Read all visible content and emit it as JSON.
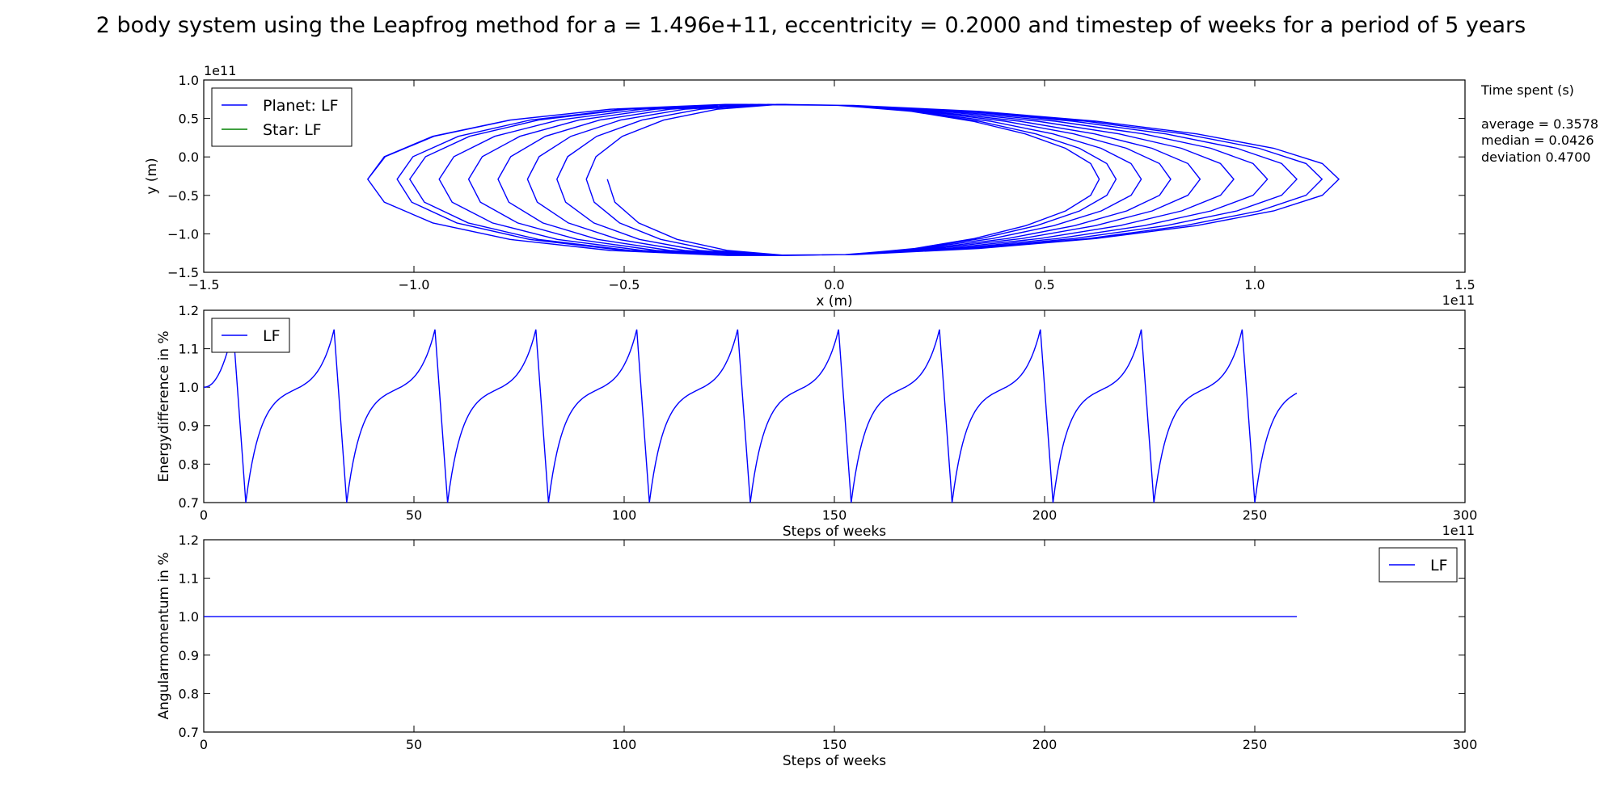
{
  "figure": {
    "title": "2 body system using the Leapfrog method for a = 1.496e+11, eccentricity = 0.2000 and timestep of weeks for a period of 5 years"
  },
  "stats_box": {
    "heading": "Time spent (s)",
    "lines": [
      "average = 0.3578",
      "median = 0.0426",
      "deviation 0.4700"
    ]
  },
  "colors": {
    "planet": "#0000ff",
    "star": "#008000",
    "axes": "#000000"
  },
  "chart_data": [
    {
      "type": "line",
      "name": "orbit",
      "xlabel": "x (m)",
      "ylabel": "y (m)",
      "x_offset_label": "1e11",
      "y_offset_label": "1e11",
      "xlim": [
        -1.5,
        1.5
      ],
      "ylim": [
        -1.5,
        1.0
      ],
      "xticks": [
        -1.5,
        -1.0,
        -0.5,
        0.0,
        0.5,
        1.0,
        1.5
      ],
      "xtick_labels": [
        "−1.5",
        "−1.0",
        "−0.5",
        "0.0",
        "0.5",
        "1.0",
        "1.5"
      ],
      "yticks": [
        -1.5,
        -1.0,
        -0.5,
        0.0,
        0.5,
        1.0
      ],
      "ytick_labels": [
        "−1.5",
        "−1.0",
        "−0.5",
        "0.0",
        "0.5",
        "1.0"
      ],
      "legend": {
        "placement": "upper-left",
        "entries": [
          "Planet: LF",
          "Star: LF"
        ]
      },
      "series": [
        {
          "name": "Planet: LF",
          "color": "#0000ff",
          "description": "precessing elliptical orbit; turning points drift from x≈-0.54 / 0.63 out to x≈-1.11 / 1.22 over 11 loops",
          "left_turning_points": [
            -0.54,
            -0.59,
            -0.66,
            -0.73,
            -0.8,
            -0.87,
            -0.94,
            -1.01,
            -1.04,
            -1.11
          ],
          "right_turning_points": [
            0.63,
            0.67,
            0.73,
            0.8,
            0.87,
            0.95,
            1.03,
            1.1,
            1.16,
            1.2,
            1.22
          ],
          "start": [
            -0.53,
            -0.25
          ],
          "end": [
            1.2,
            0.15
          ],
          "end_left": [
            -0.93,
            -0.9
          ],
          "top": 0.7,
          "bottom": -1.27
        },
        {
          "name": "Star: LF",
          "color": "#008000",
          "values": []
        }
      ]
    },
    {
      "type": "line",
      "name": "energy",
      "xlabel": "Steps of weeks",
      "ylabel": "Energydifference in %",
      "x_offset_label": "1e11",
      "xlim": [
        0,
        300
      ],
      "ylim": [
        0.7,
        1.2
      ],
      "xticks": [
        0,
        50,
        100,
        150,
        200,
        250,
        300
      ],
      "xtick_labels": [
        "0",
        "50",
        "100",
        "150",
        "200",
        "250",
        "300"
      ],
      "yticks": [
        0.7,
        0.8,
        0.9,
        1.0,
        1.1,
        1.2
      ],
      "ytick_labels": [
        "0.7",
        "0.8",
        "0.9",
        "1.0",
        "1.1",
        "1.2"
      ],
      "legend": {
        "placement": "upper-left",
        "entries": [
          "LF"
        ]
      },
      "series": [
        {
          "name": "LF",
          "color": "#0000ff",
          "x_range": [
            0,
            260
          ],
          "period_weeks": 24,
          "peak_value": 1.15,
          "trough_value": 0.7,
          "peaks_at": [
            7,
            31,
            55,
            79,
            103,
            127,
            151,
            175,
            199,
            223,
            247
          ],
          "troughs_at": [
            10,
            34,
            58,
            82,
            106,
            130,
            154,
            178,
            202,
            226,
            250
          ],
          "start_value": 1.0,
          "end_value": 0.97
        }
      ]
    },
    {
      "type": "line",
      "name": "angular-momentum",
      "xlabel": "Steps of weeks",
      "ylabel": "Angularmomentum in  %",
      "xlim": [
        0,
        300
      ],
      "ylim": [
        0.7,
        1.2
      ],
      "xticks": [
        0,
        50,
        100,
        150,
        200,
        250,
        300
      ],
      "xtick_labels": [
        "0",
        "50",
        "100",
        "150",
        "200",
        "250",
        "300"
      ],
      "yticks": [
        0.7,
        0.8,
        0.9,
        1.0,
        1.1,
        1.2
      ],
      "ytick_labels": [
        "0.7",
        "0.8",
        "0.9",
        "1.0",
        "1.1",
        "1.2"
      ],
      "legend": {
        "placement": "upper-right",
        "entries": [
          "LF"
        ]
      },
      "series": [
        {
          "name": "LF",
          "color": "#0000ff",
          "x": [
            0,
            260
          ],
          "values": [
            1.0,
            1.0
          ]
        }
      ]
    }
  ]
}
